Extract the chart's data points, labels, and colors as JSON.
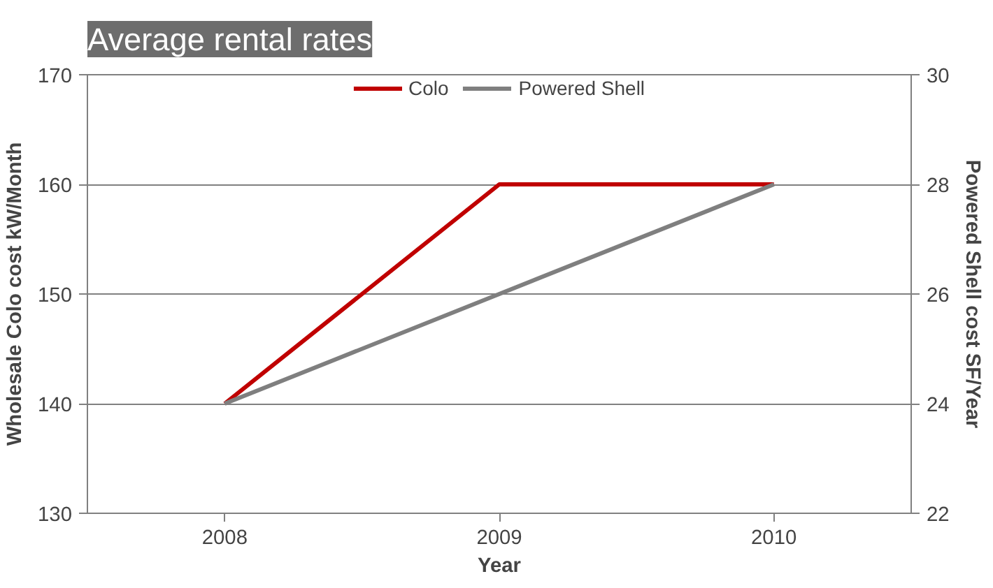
{
  "chart_data": {
    "type": "line",
    "title": "Average rental rates",
    "xlabel": "Year",
    "ylabel": "Wholesale Colo cost kW/Month",
    "y2label": "Powered Shell cost SF/Year",
    "categories": [
      "2008",
      "2009",
      "2010"
    ],
    "series": [
      {
        "name": "Colo",
        "color": "#c00000",
        "values": [
          140,
          160,
          160
        ]
      },
      {
        "name": "Powered Shell",
        "color": "#7f7f7f",
        "values": [
          24,
          26,
          28
        ],
        "axis": "y2"
      }
    ],
    "ylim": [
      130,
      170
    ],
    "yticks": [
      130,
      140,
      150,
      160,
      170
    ],
    "y2lim": [
      22,
      30
    ],
    "y2ticks": [
      22,
      24,
      26,
      28,
      30
    ],
    "grid": "y",
    "legend": "top",
    "marker": "none",
    "line_style": "solid"
  }
}
